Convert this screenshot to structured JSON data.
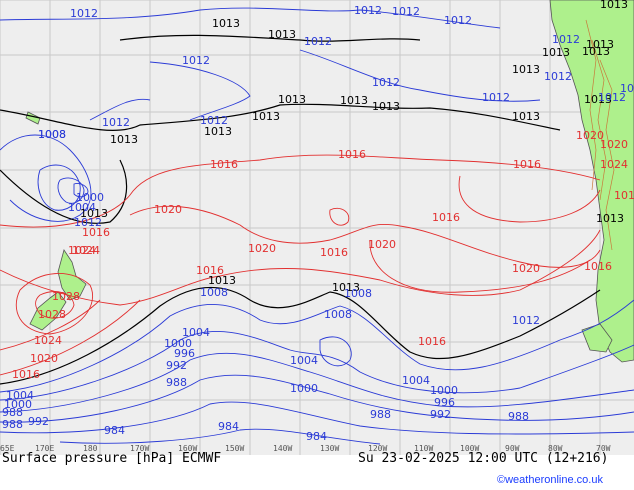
{
  "map": {
    "colors": {
      "sea": "#eeeeee",
      "land": "#aef08c",
      "grid": "#c8c8c8",
      "coast": "#555555",
      "high": "#e23030",
      "low": "#2b3bd6",
      "ref": "#000000",
      "relief": "#c87a3a"
    },
    "longitude_ticks": [
      "65E",
      "170E",
      "180",
      "170W",
      "160W",
      "150W",
      "140W",
      "130W",
      "120W",
      "110W",
      "100W",
      "90W",
      "80W",
      "70W"
    ],
    "isobar_labels": {
      "top": [
        "1012",
        "1013",
        "1013",
        "1012",
        "1012",
        "1012",
        "1012",
        "1013",
        "1012",
        "1012",
        "1012",
        "1013",
        "1013",
        "1013",
        "1012",
        "1013",
        "1013",
        "1013",
        "1012",
        "1013"
      ],
      "upper": [
        "1008",
        "1012",
        "1012",
        "1013",
        "1013",
        "1013",
        "1012",
        "1013",
        "1013",
        "1012"
      ],
      "middle": [
        "1016",
        "1016",
        "1016",
        "1016",
        "1024",
        "1020",
        "1020",
        "1020",
        "1016",
        "1016",
        "1020",
        "1020",
        "1016",
        "1016",
        "1020",
        "1024"
      ],
      "low_center": [
        "1008",
        "1004",
        "1000",
        "1012",
        "1013",
        "1016"
      ],
      "nz": [
        "1024",
        "1028",
        "1028",
        "1024",
        "1020",
        "1016"
      ],
      "south": [
        "1013",
        "1013",
        "1013",
        "1008",
        "1008",
        "1012",
        "1016",
        "1004",
        "1004",
        "1000",
        "996",
        "992",
        "988",
        "1000",
        "1004",
        "1000",
        "996",
        "992",
        "988",
        "988",
        "984",
        "984",
        "984",
        "992",
        "1004",
        "1000",
        "988",
        "988",
        "1008"
      ]
    }
  },
  "footer": {
    "title": "Surface pressure [hPa] ECMWF",
    "date": "Su 23-02-2025 12:00 UTC (12+216)",
    "credit": "©weatheronline.co.uk"
  }
}
